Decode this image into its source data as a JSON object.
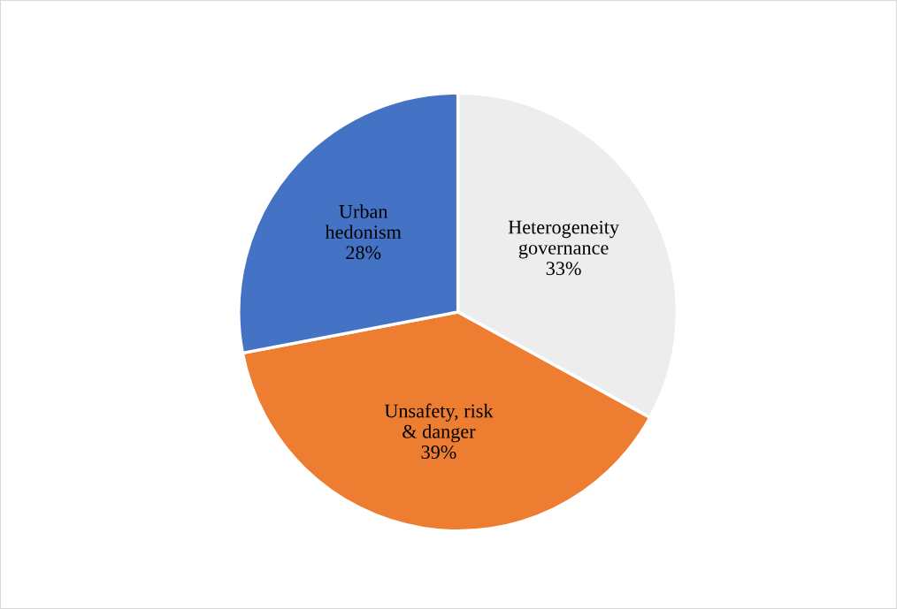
{
  "chart_data": {
    "type": "pie",
    "categories": [
      "Heterogeneity\ngovernance",
      "Unsafety, risk\n& danger",
      "Urban\nhedonism"
    ],
    "values": [
      33,
      39,
      28
    ],
    "colors": [
      "#ededed",
      "#ed7d31",
      "#4472c4"
    ],
    "value_labels": [
      "33%",
      "39%",
      "28%"
    ],
    "legend": false
  }
}
